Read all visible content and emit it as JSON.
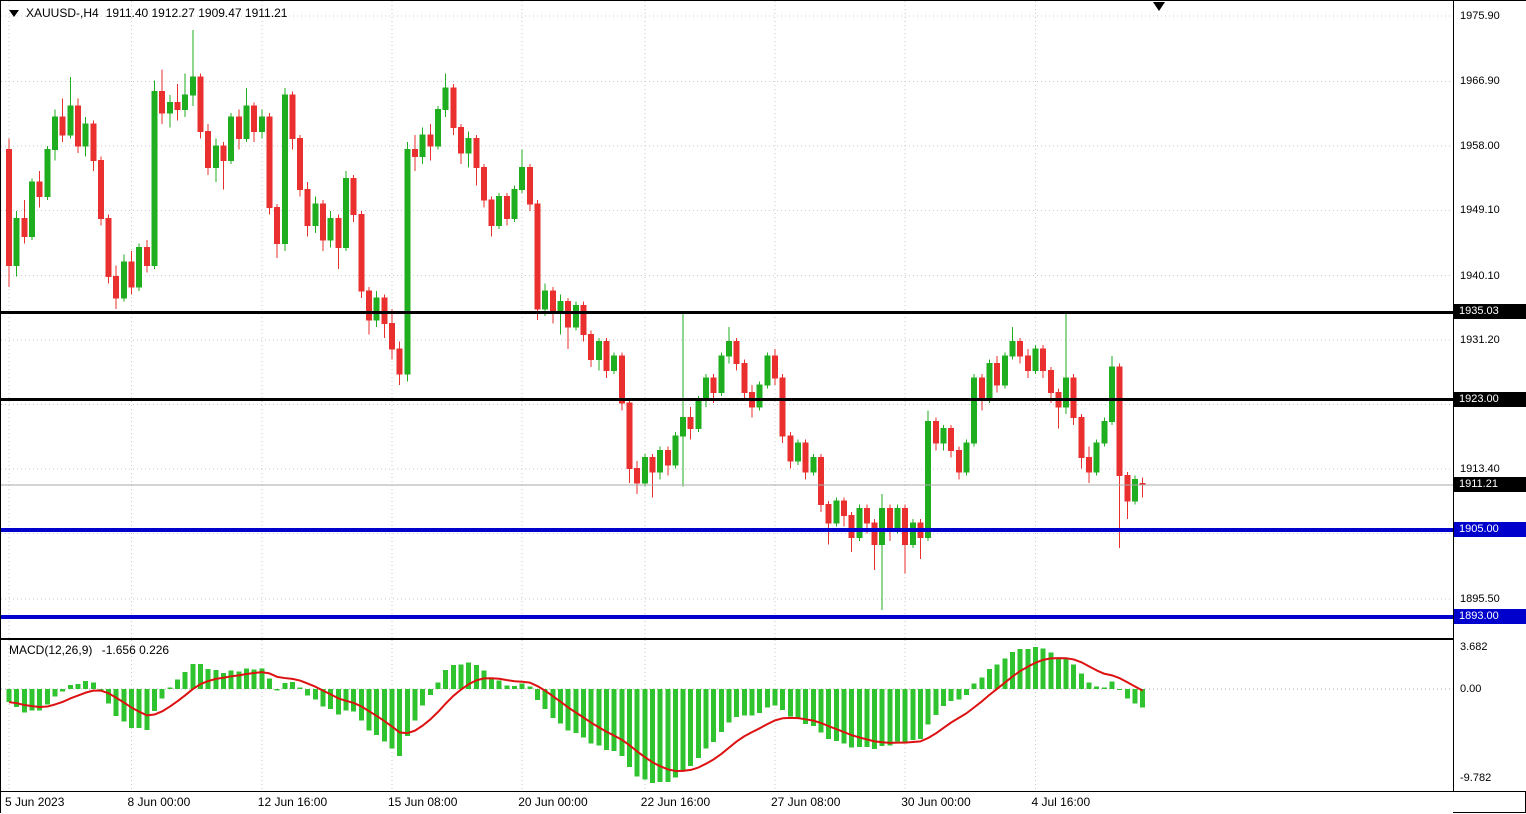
{
  "header": {
    "symbol_timeframe": "XAUUSD-,H4",
    "ohlc_line": "1911.40 1912.27 1909.47 1911.21"
  },
  "macd_panel": {
    "title": "MACD(12,26,9)",
    "values": "-1.656 0.226"
  },
  "colors": {
    "bull": "#1fae1f",
    "bear": "#ea2f2f",
    "macd_hist": "#2fc42f",
    "macd_signal": "#dd1111",
    "line_black": "#000000",
    "line_blue": "#0000cc",
    "grid": "#c9c9c9",
    "price_line": "#a8a8a8",
    "badge_black": "#000000",
    "badge_blue": "#0000cc"
  },
  "chart_data": {
    "type": "candlestick",
    "symbol": "XAUUSD-",
    "timeframe": "H4",
    "current_price": 1911.21,
    "ohlc_current": {
      "open": "1911.40",
      "high": "1912.27",
      "low": "1909.47",
      "close": "1911.21"
    },
    "price_axis": {
      "gridlines": [
        {
          "value": 1975.9,
          "label": "1975.90"
        },
        {
          "value": 1966.9,
          "label": "1966.90"
        },
        {
          "value": 1958.0,
          "label": "1958.00"
        },
        {
          "value": 1949.1,
          "label": "1949.10"
        },
        {
          "value": 1940.1,
          "label": "1940.10"
        },
        {
          "value": 1931.2,
          "label": "1931.20"
        },
        {
          "value": 1922.3,
          "label": ""
        },
        {
          "value": 1913.4,
          "label": "1913.40"
        },
        {
          "value": 1904.5,
          "label": ""
        },
        {
          "value": 1895.5,
          "label": "1895.50"
        }
      ],
      "badges": [
        {
          "value": 1935.03,
          "label": "1935.03",
          "color": "black"
        },
        {
          "value": 1923.0,
          "label": "1923.00",
          "color": "black"
        },
        {
          "value": 1911.21,
          "label": "1911.21",
          "color": "black"
        },
        {
          "value": 1905.0,
          "label": "1905.00",
          "color": "blue"
        },
        {
          "value": 1893.0,
          "label": "1893.00",
          "color": "blue"
        }
      ]
    },
    "hlines": [
      {
        "price": 1935.03,
        "color": "black",
        "width": 3
      },
      {
        "price": 1923.0,
        "color": "black",
        "width": 3
      },
      {
        "price": 1905.0,
        "color": "blue",
        "width": 4
      },
      {
        "price": 1893.0,
        "color": "blue",
        "width": 4
      }
    ],
    "time_axis": [
      {
        "label": "5 Jun 2023",
        "index": 0
      },
      {
        "label": "8 Jun 00:00",
        "index": 16
      },
      {
        "label": "12 Jun 16:00",
        "index": 33
      },
      {
        "label": "15 Jun 08:00",
        "index": 50
      },
      {
        "label": "20 Jun 00:00",
        "index": 67
      },
      {
        "label": "22 Jun 16:00",
        "index": 83
      },
      {
        "label": "27 Jun 08:00",
        "index": 100
      },
      {
        "label": "30 Jun 00:00",
        "index": 117
      },
      {
        "label": "4 Jul 16:00",
        "index": 134
      }
    ],
    "macd": {
      "params": "12,26,9",
      "current_macd": "-1.656",
      "current_signal": "0.226",
      "axis_max": "3.682",
      "axis_zero": "0.00",
      "axis_min": "-9.782"
    },
    "candles": [
      [
        1957.5,
        1959,
        1938.5,
        1941.5
      ],
      [
        1941.5,
        1949,
        1940,
        1948
      ],
      [
        1948,
        1950.5,
        1944.5,
        1945.5
      ],
      [
        1945.5,
        1953.5,
        1945,
        1953
      ],
      [
        1953,
        1954.5,
        1949.5,
        1951
      ],
      [
        1951,
        1958,
        1950.5,
        1957.5
      ],
      [
        1957.5,
        1963,
        1956,
        1962
      ],
      [
        1962,
        1964.5,
        1958.5,
        1959.5
      ],
      [
        1959.5,
        1967.5,
        1959,
        1963.5
      ],
      [
        1963.5,
        1964.5,
        1957,
        1958
      ],
      [
        1958,
        1962,
        1956.5,
        1961
      ],
      [
        1961,
        1961.5,
        1954.5,
        1956
      ],
      [
        1956,
        1956.5,
        1947,
        1948
      ],
      [
        1948,
        1948.5,
        1939,
        1940
      ],
      [
        1940,
        1941.5,
        1935.5,
        1937
      ],
      [
        1937,
        1943,
        1936.5,
        1942
      ],
      [
        1942,
        1943.5,
        1937.5,
        1938.5
      ],
      [
        1938.5,
        1944.5,
        1938,
        1944
      ],
      [
        1944,
        1945,
        1940.5,
        1941.5
      ],
      [
        1941.5,
        1967,
        1941,
        1965.5
      ],
      [
        1965.5,
        1968.5,
        1961,
        1962.5
      ],
      [
        1962.5,
        1965,
        1960.5,
        1964
      ],
      [
        1964,
        1966.5,
        1961.5,
        1963
      ],
      [
        1963,
        1968,
        1962,
        1965
      ],
      [
        1965,
        1974,
        1963.5,
        1967.5
      ],
      [
        1967.5,
        1968,
        1959,
        1960
      ],
      [
        1960,
        1961,
        1954,
        1955
      ],
      [
        1955,
        1959,
        1953,
        1958
      ],
      [
        1958,
        1958.5,
        1952,
        1956
      ],
      [
        1956,
        1962.5,
        1955.5,
        1962
      ],
      [
        1962,
        1963,
        1957.5,
        1959
      ],
      [
        1959,
        1966,
        1958.5,
        1963.5
      ],
      [
        1963.5,
        1964,
        1958.5,
        1960
      ],
      [
        1960,
        1963,
        1959,
        1962
      ],
      [
        1962,
        1962.5,
        1948.5,
        1949.5
      ],
      [
        1949.5,
        1950,
        1942.5,
        1944.5
      ],
      [
        1944.5,
        1966,
        1943.5,
        1965
      ],
      [
        1965,
        1965.5,
        1957.5,
        1959
      ],
      [
        1959,
        1959.5,
        1951,
        1952
      ],
      [
        1952,
        1953,
        1945.5,
        1947
      ],
      [
        1947,
        1951,
        1946,
        1950
      ],
      [
        1950,
        1950.5,
        1943.5,
        1945
      ],
      [
        1945,
        1949,
        1944,
        1948
      ],
      [
        1948,
        1948.5,
        1941,
        1944
      ],
      [
        1944,
        1954.5,
        1943.5,
        1953.5
      ],
      [
        1953.5,
        1954,
        1947.5,
        1948.5
      ],
      [
        1948.5,
        1949,
        1937,
        1938
      ],
      [
        1938,
        1938.5,
        1932,
        1934
      ],
      [
        1934,
        1938,
        1933,
        1937
      ],
      [
        1937,
        1937.5,
        1931.5,
        1933.5
      ],
      [
        1933.5,
        1935.5,
        1928.5,
        1930
      ],
      [
        1930,
        1931,
        1925,
        1926.5
      ],
      [
        1926.5,
        1958.5,
        1925.5,
        1957.5
      ],
      [
        1957.5,
        1959.5,
        1954.5,
        1956.5
      ],
      [
        1956.5,
        1960.5,
        1955.5,
        1959.5
      ],
      [
        1959.5,
        1961,
        1956,
        1958
      ],
      [
        1958,
        1963.5,
        1957.5,
        1963
      ],
      [
        1963,
        1968,
        1962,
        1966
      ],
      [
        1966,
        1966.5,
        1959.5,
        1960.5
      ],
      [
        1960.5,
        1961,
        1955.5,
        1957
      ],
      [
        1957,
        1960,
        1955,
        1959
      ],
      [
        1959,
        1959.5,
        1952.5,
        1955
      ],
      [
        1955,
        1955.5,
        1949.5,
        1950.5
      ],
      [
        1950.5,
        1951,
        1945.5,
        1947
      ],
      [
        1947,
        1951.5,
        1946.5,
        1951
      ],
      [
        1951,
        1951.5,
        1947,
        1948
      ],
      [
        1948,
        1952.5,
        1947.5,
        1952
      ],
      [
        1952,
        1957.5,
        1951.5,
        1955
      ],
      [
        1955,
        1955.5,
        1949,
        1950
      ],
      [
        1950,
        1950.5,
        1934,
        1935.5
      ],
      [
        1935.5,
        1939,
        1934.5,
        1938
      ],
      [
        1938,
        1938.5,
        1933.5,
        1935
      ],
      [
        1935,
        1937.5,
        1932,
        1936.5
      ],
      [
        1936.5,
        1937,
        1930,
        1933
      ],
      [
        1933,
        1936.5,
        1932.5,
        1936
      ],
      [
        1936,
        1936.5,
        1931,
        1932
      ],
      [
        1932,
        1932.5,
        1927.5,
        1928.5
      ],
      [
        1928.5,
        1931.5,
        1927,
        1931
      ],
      [
        1931,
        1931.5,
        1926,
        1927
      ],
      [
        1927,
        1929.5,
        1926.5,
        1929
      ],
      [
        1929,
        1929.5,
        1921.5,
        1922.5
      ],
      [
        1922.5,
        1923,
        1911.5,
        1913.5
      ],
      [
        1913.5,
        1914.5,
        1910,
        1911.5
      ],
      [
        1911.5,
        1915.5,
        1911,
        1915
      ],
      [
        1915,
        1915.5,
        1909.5,
        1913
      ],
      [
        1913,
        1916.5,
        1912,
        1916
      ],
      [
        1916,
        1916.5,
        1912.5,
        1914
      ],
      [
        1914,
        1918.5,
        1913.5,
        1918
      ],
      [
        1918,
        1935,
        1911,
        1920.5
      ],
      [
        1920.5,
        1922,
        1917.5,
        1919
      ],
      [
        1919,
        1923.5,
        1918.5,
        1923
      ],
      [
        1923,
        1926.5,
        1922,
        1926
      ],
      [
        1926,
        1926.5,
        1922.5,
        1924
      ],
      [
        1924,
        1929.5,
        1923.5,
        1929
      ],
      [
        1929,
        1933,
        1928,
        1931
      ],
      [
        1931,
        1931.5,
        1927,
        1928
      ],
      [
        1928,
        1928.5,
        1923,
        1924
      ],
      [
        1924,
        1925,
        1920.5,
        1922
      ],
      [
        1922,
        1925.5,
        1921.5,
        1925
      ],
      [
        1925,
        1929.5,
        1924.5,
        1929
      ],
      [
        1929,
        1930,
        1925,
        1926
      ],
      [
        1926,
        1926.5,
        1917,
        1918
      ],
      [
        1918,
        1918.5,
        1913.5,
        1914.5
      ],
      [
        1914.5,
        1917.5,
        1914,
        1917
      ],
      [
        1917,
        1917.5,
        1912,
        1913
      ],
      [
        1913,
        1915.5,
        1912.5,
        1915
      ],
      [
        1915,
        1915.5,
        1907.5,
        1908.5
      ],
      [
        1908.5,
        1909,
        1903,
        1906
      ],
      [
        1906,
        1909.5,
        1905.5,
        1909
      ],
      [
        1909,
        1909.5,
        1905.5,
        1907
      ],
      [
        1907,
        1907.5,
        1902,
        1904
      ],
      [
        1904,
        1908.5,
        1903.5,
        1908
      ],
      [
        1908,
        1908.5,
        1904.5,
        1906
      ],
      [
        1906,
        1906.5,
        1899.5,
        1903
      ],
      [
        1903,
        1910,
        1894,
        1908
      ],
      [
        1908,
        1908.5,
        1903.5,
        1905
      ],
      [
        1905,
        1908.5,
        1904.5,
        1908
      ],
      [
        1908,
        1908.5,
        1899,
        1903
      ],
      [
        1903,
        1906.5,
        1902.5,
        1906
      ],
      [
        1906,
        1906.5,
        1901,
        1904
      ],
      [
        1904,
        1921.5,
        1903.5,
        1920
      ],
      [
        1920,
        1920.5,
        1916,
        1917
      ],
      [
        1917,
        1919.5,
        1916,
        1919
      ],
      [
        1919,
        1919.5,
        1915,
        1916
      ],
      [
        1916,
        1916.5,
        1912,
        1913
      ],
      [
        1913,
        1917.5,
        1912.5,
        1917
      ],
      [
        1917,
        1926.5,
        1916.5,
        1926
      ],
      [
        1926,
        1926.5,
        1921.5,
        1923
      ],
      [
        1923,
        1928.5,
        1922.5,
        1928
      ],
      [
        1928,
        1929,
        1924,
        1925
      ],
      [
        1925,
        1929.5,
        1924.5,
        1929
      ],
      [
        1929,
        1933,
        1928.5,
        1931
      ],
      [
        1931,
        1931.5,
        1928,
        1929
      ],
      [
        1929,
        1930,
        1926,
        1927
      ],
      [
        1927,
        1930.5,
        1926.5,
        1930
      ],
      [
        1930,
        1930.5,
        1926,
        1927
      ],
      [
        1927,
        1927.5,
        1922.5,
        1924
      ],
      [
        1924,
        1924.5,
        1919,
        1922
      ],
      [
        1922,
        1935,
        1921,
        1926
      ],
      [
        1926,
        1926.5,
        1919.5,
        1920.5
      ],
      [
        1920.5,
        1921,
        1913.5,
        1915
      ],
      [
        1915,
        1916.5,
        1911.5,
        1913
      ],
      [
        1913,
        1917.5,
        1912.5,
        1917
      ],
      [
        1917,
        1920.5,
        1916.5,
        1920
      ],
      [
        1920,
        1929,
        1919.5,
        1927.5
      ],
      [
        1927.5,
        1928,
        1902.5,
        1912.5
      ],
      [
        1912.5,
        1913,
        1906.5,
        1909
      ],
      [
        1909,
        1912.5,
        1908.5,
        1912
      ],
      [
        1911.4,
        1912.27,
        1909.47,
        1911.21
      ]
    ]
  }
}
